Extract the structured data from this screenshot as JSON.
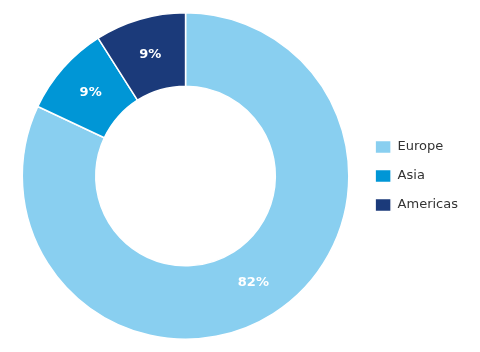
{
  "chart_data": {
    "type": "donut",
    "categories": [
      "Europe",
      "Asia",
      "Americas"
    ],
    "values": [
      82,
      9,
      9
    ],
    "value_labels": [
      "82%",
      "9%",
      "9%"
    ],
    "colors": [
      "#89CFF0",
      "#0096D6",
      "#1B3A7A"
    ],
    "data_labels": true,
    "legend": "right"
  }
}
